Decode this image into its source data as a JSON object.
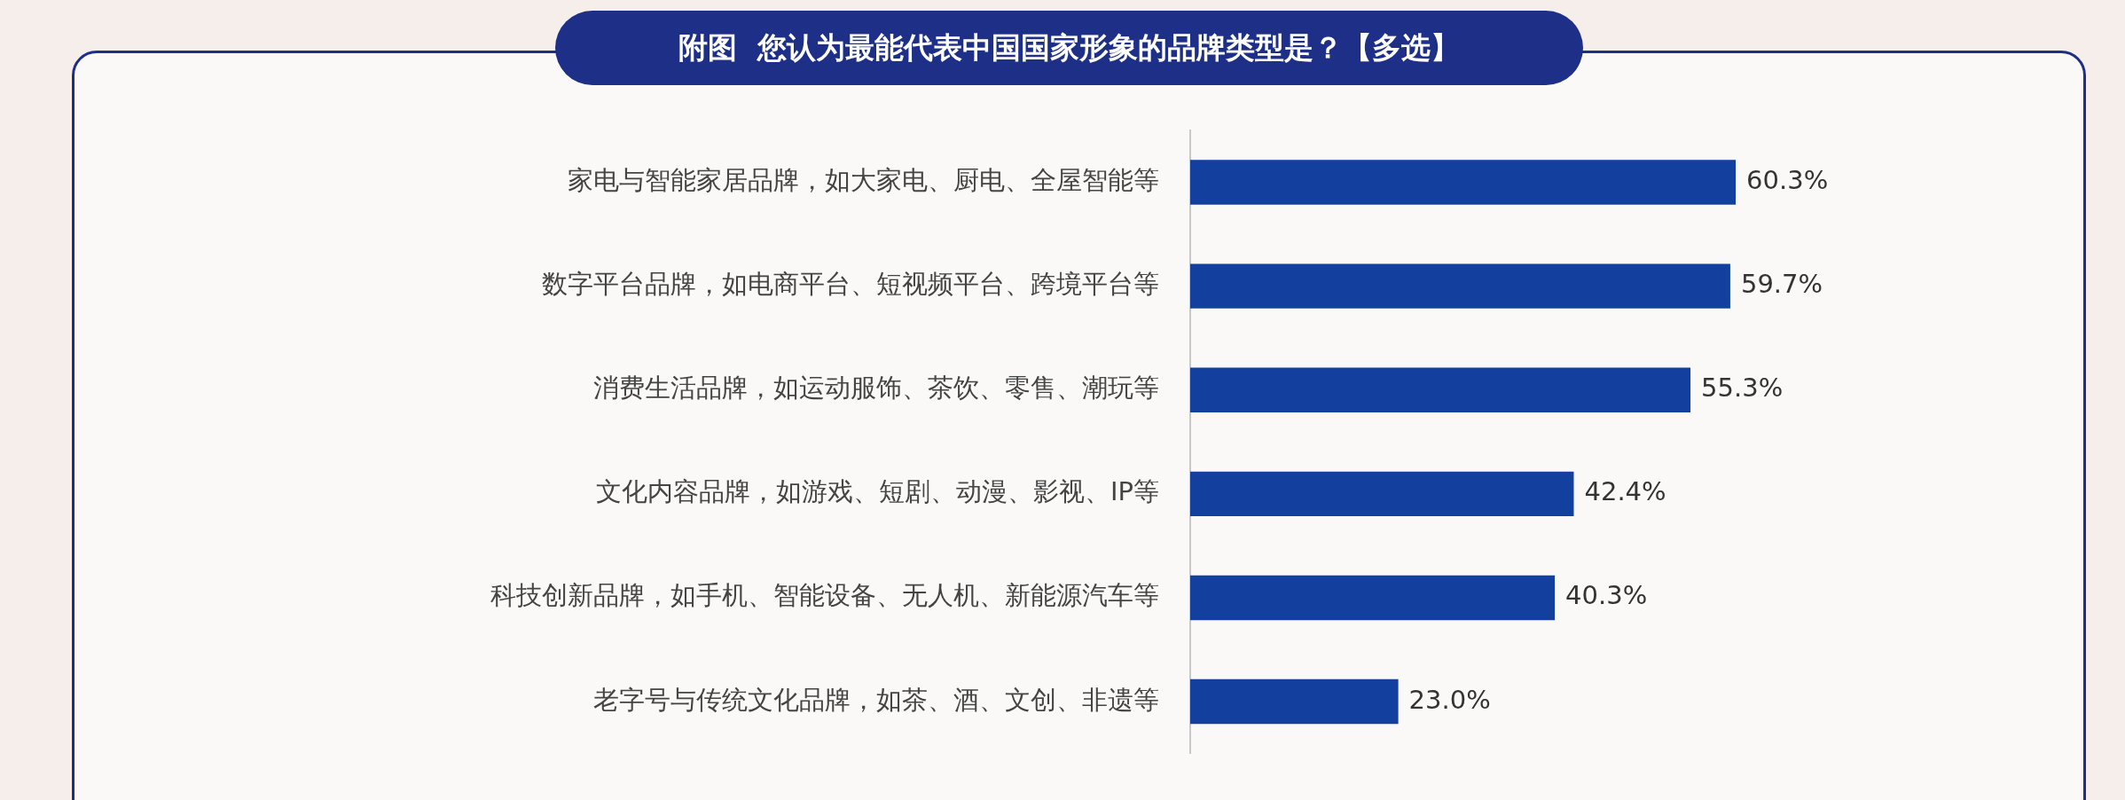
{
  "chart_data": {
    "type": "bar",
    "orientation": "horizontal",
    "title": "附图  您认为最能代表中国国家形象的品牌类型是？【多选】",
    "categories": [
      "家电与智能家居品牌，如大家电、厨电、全屋智能等",
      "数字平台品牌，如电商平台、短视频平台、跨境平台等",
      "消费生活品牌，如运动服饰、茶饮、零售、潮玩等",
      "文化内容品牌，如游戏、短剧、动漫、影视、IP等",
      "科技创新品牌，如手机、智能设备、无人机、新能源汽车等",
      "老字号与传统文化品牌，如茶、酒、文创、非遗等"
    ],
    "values": [
      60.3,
      59.7,
      55.3,
      42.4,
      40.3,
      23.0
    ],
    "value_labels": [
      "60.3%",
      "59.7%",
      "55.3%",
      "42.4%",
      "40.3%",
      "23.0%"
    ],
    "color": "#13409e"
  }
}
